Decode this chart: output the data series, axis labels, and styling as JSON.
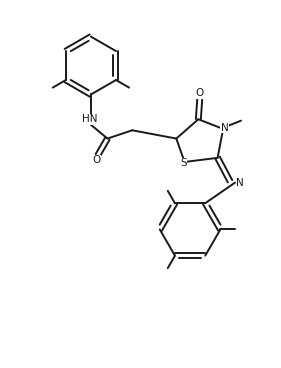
{
  "background_color": "#ffffff",
  "line_color": "#1a1a1a",
  "line_width": 1.4,
  "font_size": 7.5,
  "fig_width": 2.81,
  "fig_height": 3.68,
  "dpi": 100,
  "xlim": [
    0,
    10
  ],
  "ylim": [
    0,
    13
  ]
}
